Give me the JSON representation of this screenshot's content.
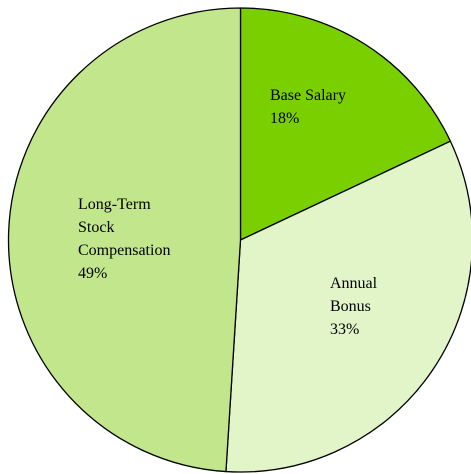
{
  "chart_data": {
    "type": "pie",
    "categories": [
      "Base Salary",
      "Annual Bonus",
      "Long-Term Stock Compensation"
    ],
    "values": [
      18,
      33,
      49
    ],
    "value_labels": [
      "18%",
      "33%",
      "49%"
    ],
    "colors": [
      "#7acf00",
      "#e1f5c9",
      "#c1e68b"
    ]
  }
}
